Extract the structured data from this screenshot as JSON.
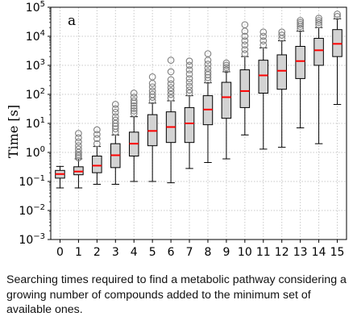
{
  "chart_data": {
    "type": "box",
    "panel_label": "a",
    "ylabel": "Time [s]",
    "yscale": "log",
    "ylim": [
      0.001,
      100000
    ],
    "grid": true,
    "categories": [
      "0",
      "1",
      "2",
      "3",
      "4",
      "5",
      "6",
      "7",
      "8",
      "9",
      "10",
      "11",
      "12",
      "13",
      "14",
      "15"
    ],
    "y_ticks": [
      {
        "value": 0.001,
        "base": "10",
        "exp": "−3"
      },
      {
        "value": 0.01,
        "base": "10",
        "exp": "−2"
      },
      {
        "value": 0.1,
        "base": "10",
        "exp": "−1"
      },
      {
        "value": 1,
        "base": "10",
        "exp": "0"
      },
      {
        "value": 10,
        "base": "10",
        "exp": "1"
      },
      {
        "value": 100,
        "base": "10",
        "exp": "2"
      },
      {
        "value": 1000,
        "base": "10",
        "exp": "3"
      },
      {
        "value": 10000,
        "base": "10",
        "exp": "4"
      },
      {
        "value": 100000,
        "base": "10",
        "exp": "5"
      }
    ],
    "boxes": [
      {
        "category": "0",
        "whisker_low": 0.06,
        "q1": 0.13,
        "median": 0.18,
        "q3": 0.24,
        "whisker_high": 0.33,
        "outliers": []
      },
      {
        "category": "1",
        "whisker_low": 0.06,
        "q1": 0.17,
        "median": 0.22,
        "q3": 0.32,
        "whisker_high": 0.6,
        "outliers": [
          0.65,
          0.75,
          0.85,
          1.0,
          1.3,
          1.7,
          2.3,
          3.2,
          4.5
        ]
      },
      {
        "category": "2",
        "whisker_low": 0.08,
        "q1": 0.2,
        "median": 0.35,
        "q3": 0.75,
        "whisker_high": 1.6,
        "outliers": [
          2.0,
          3.0,
          4.2,
          6.0
        ]
      },
      {
        "category": "3",
        "whisker_low": 0.08,
        "q1": 0.3,
        "median": 0.8,
        "q3": 2.0,
        "whisker_high": 4.0,
        "outliers": [
          5.0,
          6.5,
          8.0,
          10,
          13,
          17,
          24,
          32,
          45
        ]
      },
      {
        "category": "4",
        "whisker_low": 0.1,
        "q1": 0.75,
        "median": 2.0,
        "q3": 5.0,
        "whisker_high": 17,
        "outliers": [
          22,
          27,
          33,
          40,
          50,
          60,
          80,
          110
        ]
      },
      {
        "category": "5",
        "whisker_low": 0.1,
        "q1": 1.7,
        "median": 5.5,
        "q3": 20,
        "whisker_high": 50,
        "outliers": [
          60,
          80,
          100,
          130,
          180,
          240,
          400
        ]
      },
      {
        "category": "6",
        "whisker_low": 0.09,
        "q1": 2.2,
        "median": 7.5,
        "q3": 25,
        "whisker_high": 60,
        "outliers": [
          75,
          100,
          130,
          170,
          230,
          320,
          600,
          1500
        ]
      },
      {
        "category": "7",
        "whisker_low": 0.28,
        "q1": 2.2,
        "median": 10,
        "q3": 35,
        "whisker_high": 90,
        "outliers": [
          110,
          140,
          190,
          260,
          350,
          500,
          700,
          1000,
          1400
        ]
      },
      {
        "category": "8",
        "whisker_low": 0.45,
        "q1": 9,
        "median": 30,
        "q3": 90,
        "whisker_high": 250,
        "outliers": [
          300,
          380,
          480,
          600,
          800,
          1100,
          1500,
          2500
        ]
      },
      {
        "category": "9",
        "whisker_low": 0.6,
        "q1": 15,
        "median": 80,
        "q3": 260,
        "whisker_high": 600,
        "outliers": [
          700,
          850,
          1000,
          1200
        ]
      },
      {
        "category": "10",
        "whisker_low": 4,
        "q1": 35,
        "median": 130,
        "q3": 700,
        "whisker_high": 2000,
        "outliers": [
          2500,
          3500,
          5000,
          7000,
          10000,
          15000,
          25000
        ]
      },
      {
        "category": "11",
        "whisker_low": 1.3,
        "q1": 110,
        "median": 450,
        "q3": 1500,
        "whisker_high": 4000,
        "outliers": [
          5000,
          7000,
          10000,
          14000
        ]
      },
      {
        "category": "12",
        "whisker_low": 1.5,
        "q1": 150,
        "median": 650,
        "q3": 2300,
        "whisker_high": 7000,
        "outliers": [
          8500,
          11000,
          14000
        ]
      },
      {
        "category": "13",
        "whisker_low": 7,
        "q1": 350,
        "median": 1400,
        "q3": 4500,
        "whisker_high": 15000,
        "outliers": [
          18000,
          22000,
          26000,
          30000,
          35000
        ]
      },
      {
        "category": "14",
        "whisker_low": 2,
        "q1": 1000,
        "median": 3300,
        "q3": 8500,
        "whisker_high": 20000,
        "outliers": [
          25000,
          30000,
          35000,
          42000
        ]
      },
      {
        "category": "15",
        "whisker_low": 45,
        "q1": 2000,
        "median": 5500,
        "q3": 17000,
        "whisker_high": 40000,
        "outliers": [
          48000,
          58000
        ]
      }
    ],
    "colors": {
      "box_fill": "#d3d3d3",
      "box_edge": "#000000",
      "median": "#ff0000",
      "outlier_edge": "#808080",
      "grid": "#c8c8c8"
    }
  },
  "caption": "Searching times required to find a metabolic pathway considering a growing number of compounds added to the minimum set of available ones."
}
